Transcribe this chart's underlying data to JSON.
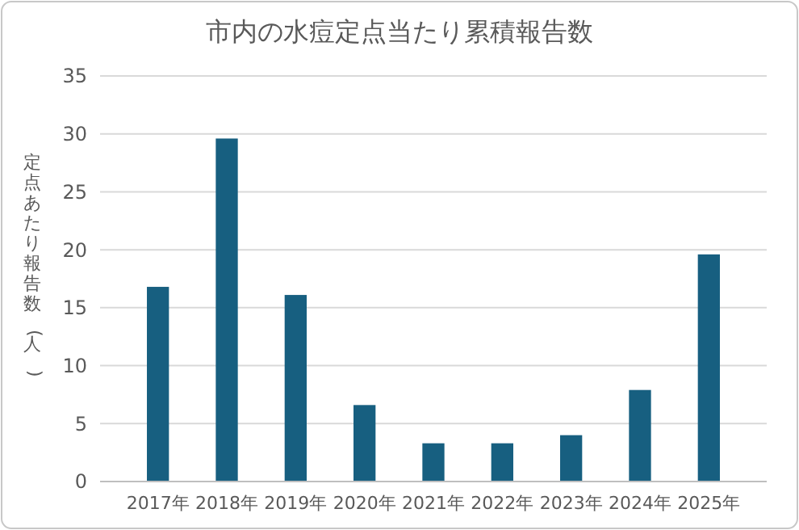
{
  "chart_data": {
    "type": "bar",
    "title": "市内の水痘定点当たり累積報告数",
    "ylabel": "定点あたり報告数(人)",
    "categories": [
      "2017年",
      "2018年",
      "2019年",
      "2020年",
      "2021年",
      "2022年",
      "2023年",
      "2024年",
      "2025年"
    ],
    "values": [
      16.8,
      29.6,
      16.1,
      6.6,
      3.3,
      3.3,
      4.0,
      7.9,
      19.6
    ],
    "color": "#175f80",
    "ylim": [
      0,
      35
    ],
    "yticks": [
      0,
      5,
      10,
      15,
      20,
      25,
      30,
      35
    ],
    "grid": "y"
  }
}
